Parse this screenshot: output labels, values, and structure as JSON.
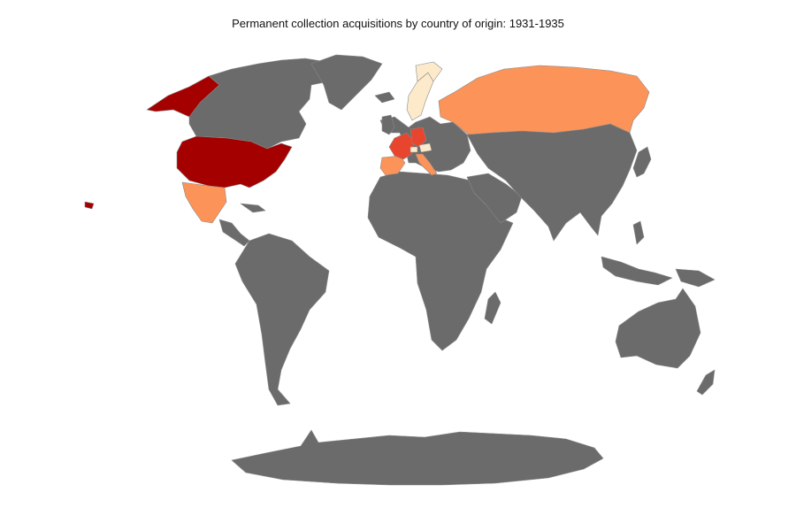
{
  "title": "Permanent collection acquisitions by country of origin: 1931-1935",
  "colors": {
    "background": "#ffffff",
    "no_data": "#6b6b6b",
    "border": "#8a8a8a",
    "level_1": "#fdeacb",
    "level_2": "#fc9359",
    "level_3": "#e8452e",
    "level_4": "#a50000"
  },
  "chart_data": {
    "type": "choropleth",
    "projection": "robinson",
    "legend": "none",
    "highlighted_countries": [
      {
        "name": "United States",
        "level": 4
      },
      {
        "name": "France",
        "level": 3
      },
      {
        "name": "Germany",
        "level": 3
      },
      {
        "name": "Russia",
        "level": 2
      },
      {
        "name": "Mexico",
        "level": 2
      },
      {
        "name": "Spain",
        "level": 2
      },
      {
        "name": "Italy",
        "level": 2
      },
      {
        "name": "Sweden",
        "level": 1
      },
      {
        "name": "Norway",
        "level": 1
      },
      {
        "name": "Switzerland",
        "level": 1
      },
      {
        "name": "Austria",
        "level": 1
      }
    ]
  }
}
